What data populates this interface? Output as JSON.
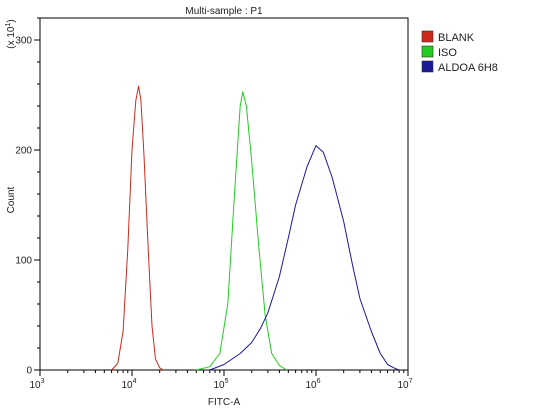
{
  "chart_data": {
    "type": "line",
    "title": "Multi-sample : P1",
    "xlabel": "FITC-A",
    "ylabel": "Count",
    "y_multiplier": "(x 10",
    "y_multiplier_exp": "1",
    "y_multiplier_close": ")",
    "xscale": "log",
    "xlim": [
      1000,
      10000000
    ],
    "ylim": [
      0,
      320
    ],
    "x_ticks": [
      {
        "base": "10",
        "exp": "3",
        "value": 1000
      },
      {
        "base": "10",
        "exp": "4",
        "value": 10000
      },
      {
        "base": "10",
        "exp": "5",
        "value": 100000
      },
      {
        "base": "10",
        "exp": "6",
        "value": 1000000
      },
      {
        "base": "10",
        "exp": "7",
        "value": 10000000
      }
    ],
    "y_ticks": [
      0,
      100,
      200,
      300
    ],
    "legend_position": "right",
    "grid": false,
    "series": [
      {
        "name": "BLANK",
        "color": "#cc2a1a",
        "x": [
          6000,
          7000,
          8000,
          9000,
          10000,
          11000,
          11800,
          12500,
          13500,
          15000,
          16500,
          18000,
          20000,
          22000
        ],
        "y": [
          0,
          6,
          35,
          110,
          200,
          245,
          258,
          245,
          195,
          110,
          40,
          10,
          2,
          0
        ]
      },
      {
        "name": "ISO",
        "color": "#22cc22",
        "x": [
          50000,
          70000,
          90000,
          110000,
          130000,
          150000,
          160000,
          175000,
          200000,
          240000,
          280000,
          330000,
          400000,
          480000
        ],
        "y": [
          0,
          3,
          15,
          60,
          160,
          240,
          253,
          240,
          190,
          110,
          50,
          15,
          4,
          0
        ]
      },
      {
        "name": "ALDOA 6H8",
        "color": "#1a1a99",
        "x": [
          70000,
          100000,
          150000,
          200000,
          250000,
          300000,
          400000,
          500000,
          600000,
          800000,
          1000000,
          1200000,
          1500000,
          2000000,
          2500000,
          3000000,
          4000000,
          5000000,
          6000000,
          7000000,
          8000000
        ],
        "y": [
          0,
          5,
          15,
          25,
          38,
          52,
          85,
          120,
          150,
          185,
          204,
          198,
          175,
          135,
          95,
          65,
          35,
          15,
          5,
          2,
          0
        ]
      }
    ]
  }
}
